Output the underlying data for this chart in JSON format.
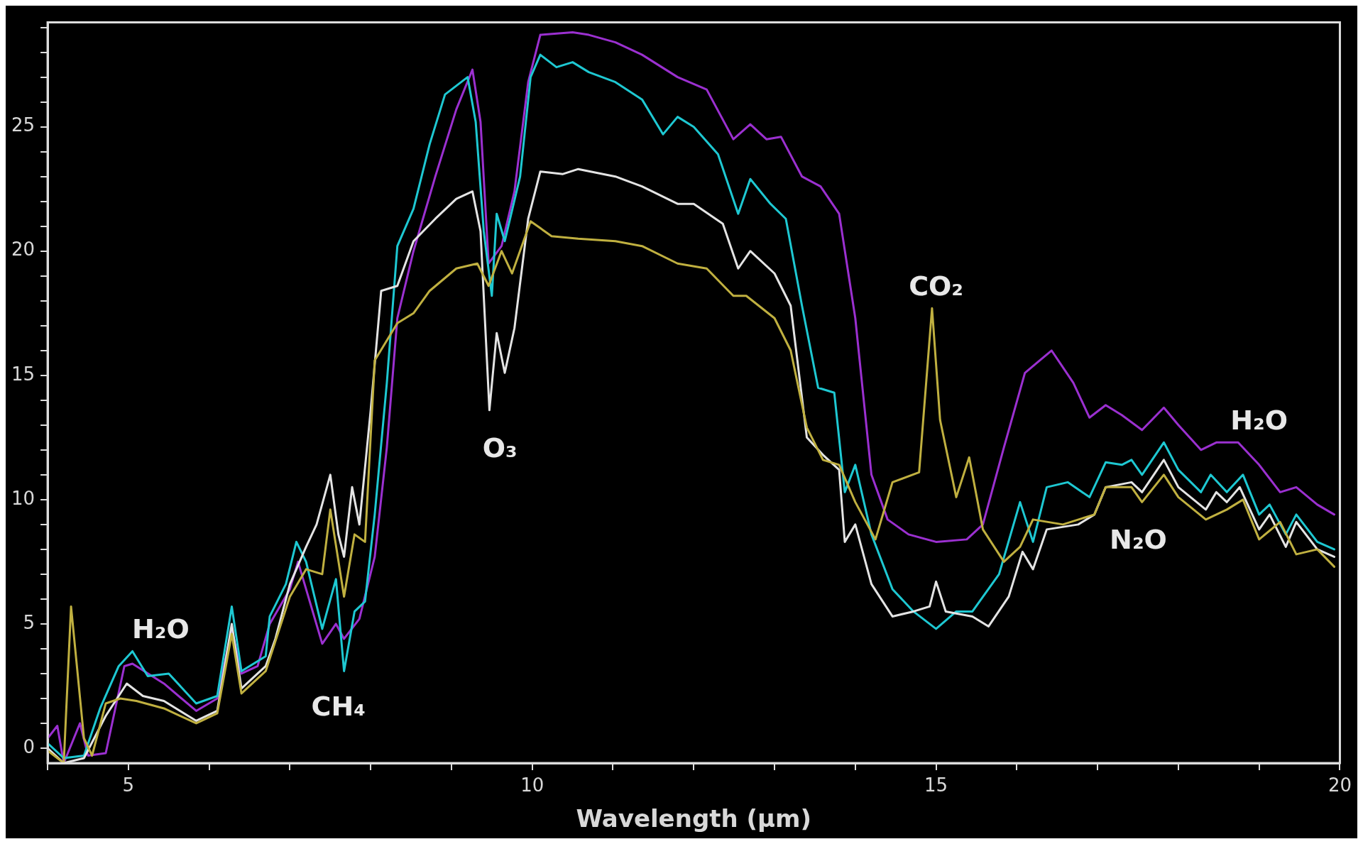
{
  "chart_data": {
    "type": "line",
    "xlabel": "Wavelength (µm)",
    "xlim": [
      4,
      20
    ],
    "xticks": [
      {
        "value": 4,
        "label": null
      },
      5,
      {
        "value": 6,
        "label": null
      },
      {
        "value": 7,
        "label": null
      },
      {
        "value": 8,
        "label": null
      },
      {
        "value": 9,
        "label": null
      },
      10,
      {
        "value": 11,
        "label": null
      },
      {
        "value": 12,
        "label": null
      },
      {
        "value": 13,
        "label": null
      },
      {
        "value": 14,
        "label": null
      },
      15,
      {
        "value": 16,
        "label": null
      },
      {
        "value": 17,
        "label": null
      },
      {
        "value": 18,
        "label": null
      },
      {
        "value": 19,
        "label": null
      },
      20
    ],
    "ylim": [
      -0.6,
      29.2
    ],
    "yticks": [
      0,
      {
        "value": 1,
        "label": null
      },
      {
        "value": 2,
        "label": null
      },
      {
        "value": 3,
        "label": null
      },
      {
        "value": 4,
        "label": null
      },
      5,
      {
        "value": 6,
        "label": null
      },
      {
        "value": 7,
        "label": null
      },
      {
        "value": 8,
        "label": null
      },
      {
        "value": 9,
        "label": null
      },
      10,
      {
        "value": 11,
        "label": null
      },
      {
        "value": 12,
        "label": null
      },
      {
        "value": 13,
        "label": null
      },
      {
        "value": 14,
        "label": null
      },
      15,
      {
        "value": 16,
        "label": null
      },
      {
        "value": 17,
        "label": null
      },
      {
        "value": 18,
        "label": null
      },
      {
        "value": 19,
        "label": null
      },
      20,
      {
        "value": 21,
        "label": null
      },
      {
        "value": 22,
        "label": null
      },
      {
        "value": 23,
        "label": null
      },
      {
        "value": 24,
        "label": null
      },
      25,
      {
        "value": 26,
        "label": null
      },
      {
        "value": 27,
        "label": null
      },
      {
        "value": 28,
        "label": null
      },
      {
        "value": 29,
        "label": null
      }
    ],
    "marker": "none",
    "line_style": "solid",
    "legend": false,
    "annotations": [
      "H₂O",
      "CH₄",
      "O₃",
      "CO₂",
      "N₂O",
      "H₂O"
    ],
    "series": [
      {
        "color": "#c0b040",
        "x": [
          4.0,
          4.2,
          4.29,
          4.45,
          4.55,
          4.72,
          4.9,
          5.1,
          5.44,
          5.84,
          6.1,
          6.28,
          6.4,
          6.7,
          7.0,
          7.2,
          7.4,
          7.5,
          7.67,
          7.8,
          7.93,
          8.05,
          8.33,
          8.53,
          8.73,
          9.06,
          9.32,
          9.46,
          9.62,
          9.75,
          9.98,
          10.24,
          10.57,
          11.03,
          11.36,
          11.8,
          12.16,
          12.49,
          12.65,
          13.0,
          13.2,
          13.4,
          13.6,
          13.8,
          14.0,
          14.25,
          14.46,
          14.79,
          14.95,
          15.05,
          15.25,
          15.41,
          15.58,
          15.84,
          16.04,
          16.2,
          16.57,
          16.96,
          17.1,
          17.42,
          17.55,
          17.82,
          18.0,
          18.34,
          18.6,
          18.8,
          19.0,
          19.26,
          19.46,
          19.72,
          19.93
        ],
        "values": [
          -0.1,
          -0.6,
          5.7,
          0.4,
          -0.3,
          1.8,
          2.0,
          1.9,
          1.6,
          1.0,
          1.4,
          4.6,
          2.2,
          3.1,
          6.1,
          7.2,
          7.0,
          9.6,
          6.1,
          8.6,
          8.3,
          15.6,
          17.1,
          17.5,
          18.4,
          19.3,
          19.5,
          18.6,
          20.0,
          19.1,
          21.2,
          20.6,
          20.5,
          20.4,
          20.2,
          19.5,
          19.3,
          18.2,
          18.2,
          17.3,
          16.0,
          12.9,
          11.6,
          11.4,
          9.9,
          8.4,
          10.7,
          11.1,
          17.7,
          13.2,
          10.1,
          11.7,
          8.8,
          7.5,
          8.1,
          9.2,
          9.0,
          9.4,
          10.5,
          10.5,
          9.9,
          11.0,
          10.1,
          9.2,
          9.6,
          10.0,
          8.4,
          9.1,
          7.8,
          8.0,
          7.3
        ]
      },
      {
        "color": "#e4e4e4",
        "x": [
          4.0,
          4.2,
          4.45,
          4.72,
          4.98,
          5.18,
          5.44,
          5.84,
          6.1,
          6.28,
          6.4,
          6.7,
          6.82,
          7.0,
          7.2,
          7.33,
          7.5,
          7.6,
          7.67,
          7.77,
          7.86,
          8.0,
          8.13,
          8.33,
          8.53,
          8.8,
          9.06,
          9.26,
          9.36,
          9.47,
          9.56,
          9.66,
          9.78,
          9.95,
          10.1,
          10.38,
          10.57,
          11.03,
          11.36,
          11.8,
          12.0,
          12.36,
          12.55,
          12.7,
          13.0,
          13.2,
          13.4,
          13.6,
          13.8,
          13.87,
          14.0,
          14.2,
          14.46,
          14.72,
          14.92,
          15.0,
          15.12,
          15.45,
          15.65,
          15.9,
          16.07,
          16.2,
          16.37,
          16.76,
          16.96,
          17.1,
          17.42,
          17.55,
          17.82,
          18.0,
          18.34,
          18.47,
          18.6,
          18.76,
          19.0,
          19.13,
          19.33,
          19.46,
          19.72,
          19.93
        ],
        "values": [
          0,
          -0.6,
          -0.4,
          1.3,
          2.6,
          2.1,
          1.9,
          1.1,
          1.5,
          5.0,
          2.4,
          3.3,
          4.4,
          6.6,
          8.1,
          9.0,
          11.0,
          8.6,
          7.7,
          10.5,
          9.0,
          13.6,
          18.4,
          18.6,
          20.4,
          21.3,
          22.1,
          22.4,
          20.8,
          13.6,
          16.7,
          15.1,
          16.9,
          21.3,
          23.2,
          23.1,
          23.3,
          23.0,
          22.6,
          21.9,
          21.9,
          21.1,
          19.3,
          20.0,
          19.1,
          17.8,
          12.5,
          11.8,
          11.2,
          8.3,
          9.0,
          6.6,
          5.3,
          5.5,
          5.7,
          6.7,
          5.5,
          5.3,
          4.9,
          6.1,
          7.9,
          7.2,
          8.8,
          9.0,
          9.4,
          10.5,
          10.7,
          10.3,
          11.6,
          10.5,
          9.6,
          10.3,
          9.9,
          10.5,
          8.8,
          9.4,
          8.1,
          9.1,
          8.0,
          7.7
        ]
      },
      {
        "color": "#1ec8d2",
        "x": [
          4.0,
          4.2,
          4.45,
          4.65,
          4.88,
          5.05,
          5.24,
          5.5,
          5.84,
          6.1,
          6.28,
          6.4,
          6.7,
          6.75,
          6.95,
          7.08,
          7.2,
          7.4,
          7.57,
          7.67,
          7.8,
          7.93,
          8.05,
          8.2,
          8.33,
          8.53,
          8.73,
          8.92,
          9.2,
          9.3,
          9.4,
          9.5,
          9.56,
          9.66,
          9.85,
          9.98,
          10.1,
          10.3,
          10.5,
          10.7,
          11.03,
          11.36,
          11.62,
          11.8,
          12.0,
          12.3,
          12.55,
          12.7,
          12.95,
          13.14,
          13.34,
          13.54,
          13.74,
          13.87,
          14.0,
          14.2,
          14.46,
          14.72,
          15.0,
          15.25,
          15.45,
          15.78,
          16.04,
          16.2,
          16.37,
          16.63,
          16.9,
          17.1,
          17.3,
          17.42,
          17.55,
          17.82,
          18.0,
          18.28,
          18.4,
          18.6,
          18.8,
          19.0,
          19.13,
          19.33,
          19.46,
          19.72,
          19.93
        ],
        "values": [
          0.2,
          -0.4,
          -0.3,
          1.6,
          3.3,
          3.9,
          2.9,
          3.0,
          1.8,
          2.1,
          5.7,
          3.1,
          3.7,
          5.3,
          6.6,
          8.3,
          7.5,
          4.8,
          6.8,
          3.1,
          5.5,
          5.9,
          9.4,
          14.7,
          20.2,
          21.7,
          24.3,
          26.3,
          27.0,
          25.2,
          20.8,
          18.2,
          21.5,
          20.4,
          23.0,
          27.0,
          27.9,
          27.4,
          27.6,
          27.2,
          26.8,
          26.1,
          24.7,
          25.4,
          25.0,
          23.9,
          21.5,
          22.9,
          21.9,
          21.3,
          17.8,
          14.5,
          14.3,
          10.3,
          11.4,
          8.6,
          6.4,
          5.5,
          4.8,
          5.5,
          5.5,
          7.0,
          9.9,
          8.3,
          10.5,
          10.7,
          10.1,
          11.5,
          11.4,
          11.6,
          11.0,
          12.3,
          11.2,
          10.3,
          11.0,
          10.3,
          11.0,
          9.4,
          9.8,
          8.6,
          9.4,
          8.3,
          8.0
        ]
      },
      {
        "color": "#9b30d0",
        "x": [
          4.0,
          4.12,
          4.2,
          4.4,
          4.5,
          4.72,
          4.95,
          5.05,
          5.44,
          5.84,
          6.1,
          6.28,
          6.4,
          6.6,
          6.75,
          7.0,
          7.1,
          7.4,
          7.57,
          7.67,
          7.86,
          8.05,
          8.2,
          8.33,
          8.53,
          8.8,
          9.06,
          9.26,
          9.36,
          9.46,
          9.62,
          9.78,
          9.95,
          10.1,
          10.5,
          10.7,
          11.03,
          11.36,
          11.8,
          12.16,
          12.49,
          12.7,
          12.9,
          13.08,
          13.34,
          13.57,
          13.8,
          14.0,
          14.2,
          14.4,
          14.66,
          15.0,
          15.38,
          15.58,
          15.84,
          16.1,
          16.43,
          16.7,
          16.9,
          17.1,
          17.3,
          17.55,
          17.82,
          18.0,
          18.28,
          18.47,
          18.74,
          19.0,
          19.26,
          19.46,
          19.72,
          19.93
        ],
        "values": [
          0.4,
          0.9,
          -0.6,
          1.0,
          -0.3,
          -0.2,
          3.3,
          3.4,
          2.6,
          1.5,
          2.0,
          4.8,
          3.0,
          3.3,
          5.0,
          6.4,
          7.5,
          4.2,
          5.0,
          4.4,
          5.2,
          7.7,
          12.1,
          17.3,
          20.0,
          23.0,
          25.7,
          27.3,
          25.2,
          19.5,
          20.2,
          22.4,
          26.8,
          28.7,
          28.8,
          28.7,
          28.4,
          27.9,
          27.0,
          26.5,
          24.5,
          25.1,
          24.5,
          24.6,
          23.0,
          22.6,
          21.5,
          17.3,
          11.0,
          9.2,
          8.6,
          8.3,
          8.4,
          9.0,
          12.1,
          15.1,
          16.0,
          14.7,
          13.3,
          13.8,
          13.4,
          12.8,
          13.7,
          13.0,
          12.0,
          12.3,
          12.3,
          11.4,
          10.3,
          10.5,
          9.8,
          9.4
        ]
      }
    ]
  }
}
